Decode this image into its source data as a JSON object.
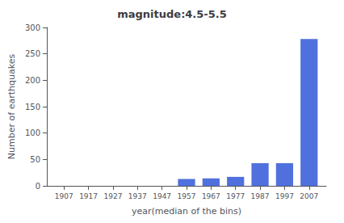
{
  "chart_data": {
    "type": "bar",
    "title": "magnitude:4.5-5.5",
    "xlabel": "year(median of the bins)",
    "ylabel": "Number of earthquakes",
    "x": [
      1907,
      1917,
      1927,
      1937,
      1947,
      1957,
      1967,
      1977,
      1987,
      1997,
      2007
    ],
    "values": [
      0,
      0,
      0,
      0,
      0,
      13,
      14,
      17,
      43,
      43,
      278
    ],
    "xlim": [
      1900,
      2014
    ],
    "xticks": [
      1907,
      1917,
      1927,
      1937,
      1947,
      1957,
      1967,
      1977,
      1987,
      1997,
      2007
    ],
    "ylim": [
      0,
      300
    ],
    "yticks": [
      0,
      50,
      100,
      150,
      200,
      250,
      300
    ],
    "grid": false
  }
}
